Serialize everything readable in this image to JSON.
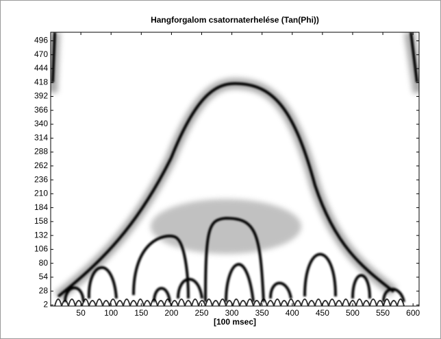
{
  "chart_data": {
    "type": "image",
    "title": "Hangforgalom csatornaterhelése (Tan(Phi))",
    "xlabel": "[100 msec]",
    "xlim": [
      0,
      610
    ],
    "xticks": [
      50,
      100,
      150,
      200,
      250,
      300,
      350,
      400,
      450,
      500,
      550,
      600
    ],
    "ylim": [
      0,
      512
    ],
    "yticks": [
      2,
      28,
      54,
      80,
      106,
      132,
      158,
      184,
      210,
      236,
      262,
      288,
      314,
      340,
      366,
      392,
      418,
      444,
      470,
      496
    ]
  }
}
